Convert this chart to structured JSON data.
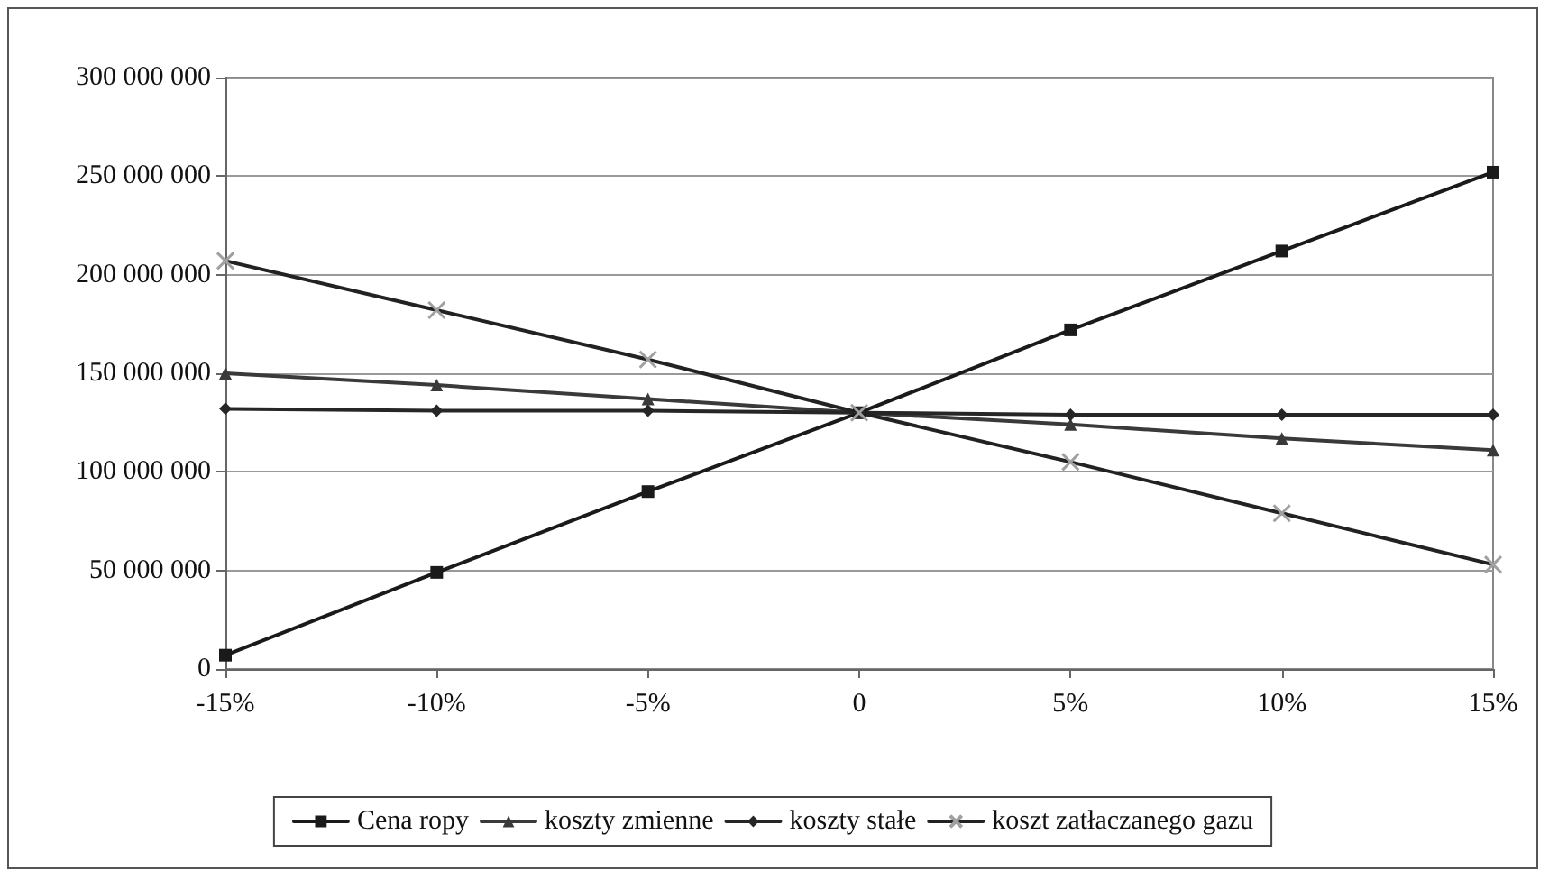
{
  "chart_data": {
    "type": "line",
    "categories": [
      "-15%",
      "-10%",
      "-5%",
      "0",
      "5%",
      "10%",
      "15%"
    ],
    "series": [
      {
        "name": "Cena ropy",
        "color": "#1a1a1a",
        "marker": "square",
        "values": [
          7000000,
          49000000,
          90000000,
          130000000,
          172000000,
          212000000,
          252000000
        ]
      },
      {
        "name": "koszty zmienne",
        "color": "#3a3a3a",
        "marker": "triangle",
        "values": [
          150000000,
          144000000,
          137000000,
          130000000,
          124000000,
          117000000,
          111000000
        ]
      },
      {
        "name": "koszty stałe",
        "color": "#262626",
        "marker": "diamond",
        "values": [
          132000000,
          131000000,
          131000000,
          130000000,
          129000000,
          129000000,
          129000000
        ]
      },
      {
        "name": "koszt zatłaczanego gazu",
        "color": "#222222",
        "marker": "cross",
        "values": [
          207000000,
          182000000,
          157000000,
          130000000,
          105000000,
          79000000,
          53000000
        ]
      }
    ],
    "ylim": [
      0,
      300000000
    ],
    "yticks": [
      {
        "value": 0,
        "label": "0"
      },
      {
        "value": 50000000,
        "label": "50 000 000"
      },
      {
        "value": 100000000,
        "label": "100 000 000"
      },
      {
        "value": 150000000,
        "label": "150 000 000"
      },
      {
        "value": 200000000,
        "label": "200 000 000"
      },
      {
        "value": 250000000,
        "label": "250 000 000"
      },
      {
        "value": 300000000,
        "label": "300 000 000"
      }
    ],
    "grid": "y",
    "legend": "bottom",
    "line_style": "solid"
  }
}
